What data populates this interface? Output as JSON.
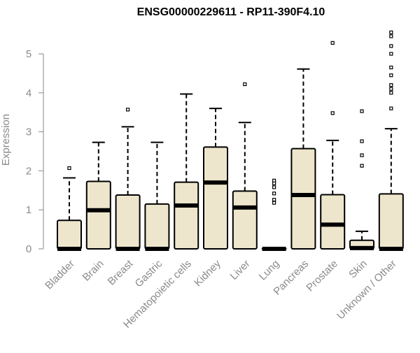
{
  "chart_data": {
    "type": "boxplot",
    "title": "ENSG00000229611 - RP11-390F4.10",
    "xlabel": "",
    "ylabel": "Expression",
    "ylim": [
      0,
      5.6
    ],
    "yticks": [
      0,
      1,
      2,
      3,
      4,
      5
    ],
    "grid": false,
    "colors": {
      "box_fill": "#ede6cc",
      "box_stroke": "#000000",
      "median": "#000000",
      "axis": "#8a8a8a"
    },
    "categories": [
      "Bladder",
      "Brain",
      "Breast",
      "Gastric",
      "Hematopoietic cells",
      "Kidney",
      "Liver",
      "Lung",
      "Pancreas",
      "Prostate",
      "Skin",
      "Unknown / Other"
    ],
    "boxes": [
      {
        "category": "Bladder",
        "whisker_low": 0,
        "q1": 0,
        "median": 0,
        "q3": 0.73,
        "whisker_high": 1.82,
        "outliers": [
          2.07
        ]
      },
      {
        "category": "Brain",
        "whisker_low": 0,
        "q1": 0,
        "median": 0.99,
        "q3": 1.73,
        "whisker_high": 2.73,
        "outliers": []
      },
      {
        "category": "Breast",
        "whisker_low": 0,
        "q1": 0,
        "median": 0,
        "q3": 1.38,
        "whisker_high": 3.13,
        "outliers": [
          3.57
        ]
      },
      {
        "category": "Gastric",
        "whisker_low": 0,
        "q1": 0,
        "median": 0,
        "q3": 1.15,
        "whisker_high": 2.73,
        "outliers": []
      },
      {
        "category": "Hematopoietic cells",
        "whisker_low": 0,
        "q1": 0,
        "median": 1.11,
        "q3": 1.71,
        "whisker_high": 3.97,
        "outliers": []
      },
      {
        "category": "Kidney",
        "whisker_low": 0,
        "q1": 0,
        "median": 1.7,
        "q3": 2.61,
        "whisker_high": 3.6,
        "outliers": []
      },
      {
        "category": "Liver",
        "whisker_low": 0,
        "q1": 0,
        "median": 1.06,
        "q3": 1.48,
        "whisker_high": 3.24,
        "outliers": [
          4.22
        ]
      },
      {
        "category": "Lung",
        "whisker_low": 0,
        "q1": 0,
        "median": 0,
        "q3": 0,
        "whisker_high": 0,
        "outliers": [
          1.18,
          1.26,
          1.42,
          1.58,
          1.68,
          1.75
        ]
      },
      {
        "category": "Pancreas",
        "whisker_low": 0,
        "q1": 0,
        "median": 1.38,
        "q3": 2.57,
        "whisker_high": 4.61,
        "outliers": []
      },
      {
        "category": "Prostate",
        "whisker_low": 0,
        "q1": 0,
        "median": 0.62,
        "q3": 1.39,
        "whisker_high": 2.78,
        "outliers": [
          3.48,
          5.28
        ]
      },
      {
        "category": "Skin",
        "whisker_low": 0,
        "q1": 0,
        "median": 0.02,
        "q3": 0.22,
        "whisker_high": 0.45,
        "outliers": [
          2.13,
          2.4,
          2.76,
          3.53
        ]
      },
      {
        "category": "Unknown / Other",
        "whisker_low": 0,
        "q1": 0,
        "median": 0,
        "q3": 1.41,
        "whisker_high": 3.08,
        "outliers": [
          3.6,
          4.0,
          4.1,
          4.2,
          4.45,
          4.65,
          5.0,
          5.2,
          5.45,
          5.55
        ]
      }
    ]
  }
}
